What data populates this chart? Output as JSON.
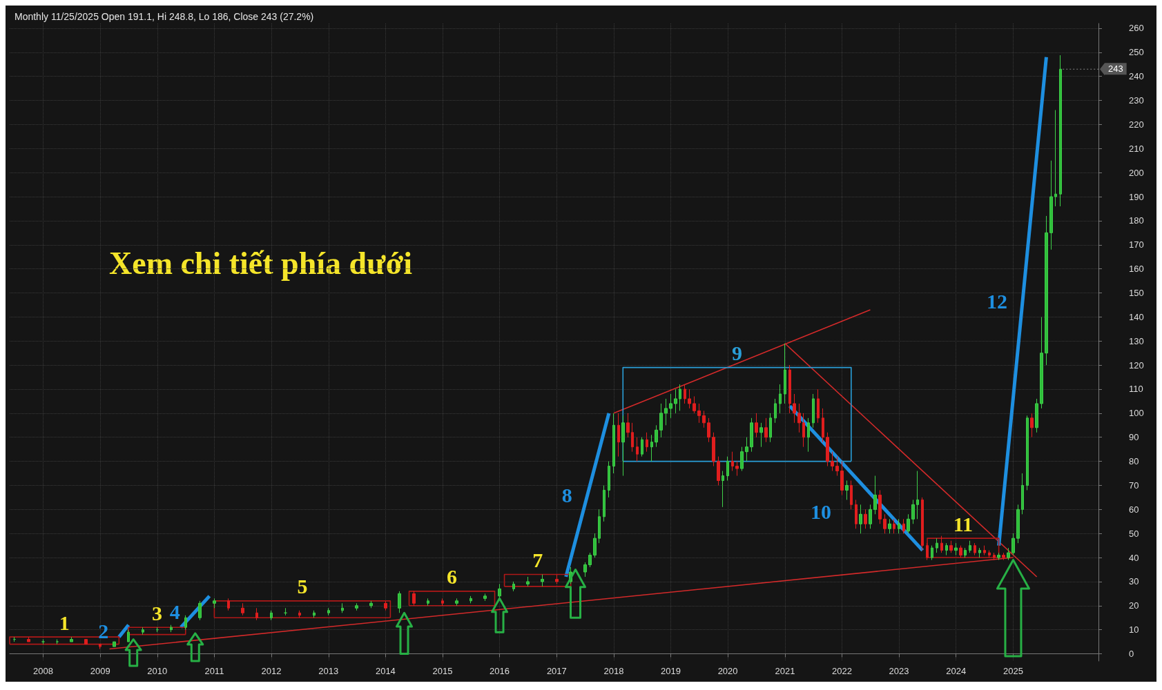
{
  "chart_data": {
    "type": "candlestick",
    "title": "Monthly 11/25/2025 Open 191.1, Hi 248.8, Lo 186, Close 243 (27.2%)",
    "x": [
      "2007-07",
      "2007-10",
      "2008-01",
      "2008-04",
      "2008-07",
      "2008-10",
      "2009-01",
      "2009-04",
      "2009-07",
      "2009-10",
      "2010-01",
      "2010-04",
      "2010-07",
      "2010-10",
      "2011-01",
      "2011-04",
      "2011-07",
      "2011-10",
      "2012-01",
      "2012-04",
      "2012-07",
      "2012-10",
      "2013-01",
      "2013-04",
      "2013-07",
      "2013-10",
      "2014-01",
      "2014-04",
      "2014-07",
      "2014-10",
      "2015-01",
      "2015-04",
      "2015-07",
      "2015-10",
      "2016-01",
      "2016-04",
      "2016-07",
      "2016-10",
      "2017-01",
      "2017-04",
      "2017-07",
      "2017-08",
      "2017-09",
      "2017-10",
      "2017-11",
      "2017-12",
      "2018-01",
      "2018-02",
      "2018-03",
      "2018-04",
      "2018-05",
      "2018-06",
      "2018-07",
      "2018-08",
      "2018-09",
      "2018-10",
      "2018-11",
      "2018-12",
      "2019-01",
      "2019-02",
      "2019-03",
      "2019-04",
      "2019-05",
      "2019-06",
      "2019-07",
      "2019-08",
      "2019-09",
      "2019-10",
      "2019-11",
      "2019-12",
      "2020-01",
      "2020-02",
      "2020-03",
      "2020-04",
      "2020-05",
      "2020-06",
      "2020-07",
      "2020-08",
      "2020-09",
      "2020-10",
      "2020-11",
      "2020-12",
      "2021-01",
      "2021-02",
      "2021-03",
      "2021-04",
      "2021-05",
      "2021-06",
      "2021-07",
      "2021-08",
      "2021-09",
      "2021-10",
      "2021-11",
      "2021-12",
      "2022-01",
      "2022-02",
      "2022-03",
      "2022-04",
      "2022-05",
      "2022-06",
      "2022-07",
      "2022-08",
      "2022-09",
      "2022-10",
      "2022-11",
      "2022-12",
      "2023-01",
      "2023-02",
      "2023-03",
      "2023-04",
      "2023-05",
      "2023-06",
      "2023-07",
      "2023-08",
      "2023-09",
      "2023-10",
      "2023-11",
      "2023-12",
      "2024-01",
      "2024-02",
      "2024-03",
      "2024-04",
      "2024-05",
      "2024-06",
      "2024-07",
      "2024-08",
      "2024-09",
      "2024-10",
      "2024-11",
      "2024-12",
      "2025-01",
      "2025-02",
      "2025-03",
      "2025-04",
      "2025-05",
      "2025-06",
      "2025-07",
      "2025-08",
      "2025-09",
      "2025-10",
      "2025-11"
    ],
    "ohlc": [
      [
        6,
        7,
        5,
        6
      ],
      [
        6,
        7,
        5,
        5
      ],
      [
        5,
        6,
        4,
        5
      ],
      [
        5,
        6,
        4,
        5
      ],
      [
        5,
        7,
        5,
        6
      ],
      [
        6,
        6,
        4,
        4
      ],
      [
        4,
        4,
        2,
        3
      ],
      [
        3,
        5,
        3,
        5
      ],
      [
        5,
        10,
        5,
        9
      ],
      [
        9,
        11,
        8,
        10
      ],
      [
        10,
        11,
        9,
        10
      ],
      [
        10,
        12,
        9,
        11
      ],
      [
        11,
        16,
        10,
        15
      ],
      [
        15,
        22,
        14,
        21
      ],
      [
        21,
        23,
        19,
        22
      ],
      [
        22,
        23,
        18,
        19
      ],
      [
        19,
        21,
        16,
        17
      ],
      [
        17,
        19,
        14,
        15
      ],
      [
        15,
        18,
        14,
        17
      ],
      [
        17,
        19,
        16,
        17
      ],
      [
        17,
        18,
        15,
        16
      ],
      [
        16,
        18,
        15,
        17
      ],
      [
        17,
        19,
        16,
        18
      ],
      [
        18,
        21,
        17,
        19
      ],
      [
        19,
        21,
        18,
        20
      ],
      [
        20,
        22,
        19,
        21
      ],
      [
        21,
        22,
        18,
        19
      ],
      [
        19,
        26,
        17,
        25
      ],
      [
        25,
        26,
        20,
        21
      ],
      [
        21,
        23,
        20,
        22
      ],
      [
        22,
        23,
        20,
        21
      ],
      [
        21,
        23,
        20,
        22
      ],
      [
        22,
        24,
        21,
        23
      ],
      [
        23,
        25,
        22,
        24
      ],
      [
        24,
        29,
        23,
        27
      ],
      [
        27,
        30,
        26,
        29
      ],
      [
        29,
        32,
        28,
        30
      ],
      [
        30,
        33,
        28,
        31
      ],
      [
        31,
        33,
        29,
        30
      ],
      [
        30,
        36,
        29,
        34
      ],
      [
        34,
        38,
        32,
        37
      ],
      [
        37,
        42,
        36,
        41
      ],
      [
        41,
        50,
        40,
        48
      ],
      [
        48,
        60,
        46,
        57
      ],
      [
        57,
        70,
        55,
        68
      ],
      [
        68,
        80,
        65,
        78
      ],
      [
        78,
        100,
        75,
        95
      ],
      [
        95,
        100,
        82,
        88
      ],
      [
        88,
        99,
        74,
        96
      ],
      [
        96,
        100,
        90,
        92
      ],
      [
        92,
        96,
        84,
        86
      ],
      [
        86,
        90,
        80,
        83
      ],
      [
        83,
        90,
        82,
        89
      ],
      [
        89,
        92,
        84,
        86
      ],
      [
        86,
        91,
        80,
        88
      ],
      [
        88,
        95,
        86,
        93
      ],
      [
        93,
        104,
        90,
        100
      ],
      [
        100,
        106,
        95,
        102
      ],
      [
        102,
        108,
        98,
        104
      ],
      [
        104,
        110,
        100,
        106
      ],
      [
        106,
        112,
        101,
        110
      ],
      [
        110,
        112,
        104,
        106
      ],
      [
        106,
        110,
        102,
        104
      ],
      [
        104,
        107,
        100,
        101
      ],
      [
        101,
        104,
        96,
        99
      ],
      [
        99,
        101,
        94,
        96
      ],
      [
        96,
        98,
        88,
        90
      ],
      [
        90,
        92,
        78,
        80
      ],
      [
        80,
        82,
        70,
        72
      ],
      [
        72,
        76,
        61,
        74
      ],
      [
        74,
        82,
        72,
        80
      ],
      [
        80,
        84,
        76,
        78
      ],
      [
        78,
        80,
        74,
        77
      ],
      [
        77,
        86,
        76,
        84
      ],
      [
        84,
        90,
        80,
        86
      ],
      [
        86,
        98,
        84,
        96
      ],
      [
        96,
        100,
        90,
        92
      ],
      [
        92,
        96,
        86,
        94
      ],
      [
        94,
        98,
        88,
        90
      ],
      [
        90,
        100,
        88,
        98
      ],
      [
        98,
        106,
        96,
        104
      ],
      [
        104,
        112,
        100,
        108
      ],
      [
        108,
        129,
        104,
        118
      ],
      [
        118,
        120,
        100,
        104
      ],
      [
        104,
        108,
        96,
        100
      ],
      [
        100,
        104,
        92,
        96
      ],
      [
        96,
        100,
        86,
        90
      ],
      [
        90,
        98,
        84,
        96
      ],
      [
        96,
        108,
        94,
        106
      ],
      [
        106,
        110,
        96,
        98
      ],
      [
        98,
        102,
        88,
        90
      ],
      [
        90,
        92,
        78,
        80
      ],
      [
        80,
        84,
        76,
        78
      ],
      [
        78,
        82,
        74,
        76
      ],
      [
        76,
        80,
        66,
        68
      ],
      [
        68,
        72,
        64,
        70
      ],
      [
        70,
        72,
        60,
        62
      ],
      [
        62,
        64,
        52,
        54
      ],
      [
        54,
        62,
        50,
        58
      ],
      [
        58,
        60,
        52,
        54
      ],
      [
        54,
        62,
        52,
        60
      ],
      [
        60,
        74,
        58,
        66
      ],
      [
        66,
        68,
        54,
        56
      ],
      [
        56,
        58,
        50,
        52
      ],
      [
        52,
        56,
        50,
        54
      ],
      [
        54,
        56,
        50,
        52
      ],
      [
        52,
        56,
        50,
        54
      ],
      [
        54,
        56,
        50,
        51
      ],
      [
        51,
        58,
        50,
        56
      ],
      [
        56,
        64,
        54,
        62
      ],
      [
        62,
        76,
        56,
        64
      ],
      [
        64,
        65,
        43,
        45
      ],
      [
        45,
        46,
        39,
        40
      ],
      [
        40,
        45,
        39,
        44
      ],
      [
        44,
        48,
        42,
        46
      ],
      [
        46,
        49,
        42,
        43
      ],
      [
        43,
        46,
        41,
        45
      ],
      [
        45,
        47,
        42,
        43
      ],
      [
        43,
        46,
        41,
        44
      ],
      [
        44,
        45,
        40,
        41
      ],
      [
        41,
        44,
        40,
        43
      ],
      [
        43,
        47,
        42,
        45
      ],
      [
        45,
        46,
        41,
        42
      ],
      [
        42,
        44,
        40,
        43
      ],
      [
        43,
        45,
        41,
        42
      ],
      [
        42,
        43,
        40,
        41
      ],
      [
        41,
        42,
        39,
        40
      ],
      [
        40,
        42,
        39,
        41
      ],
      [
        41,
        42,
        39,
        40
      ],
      [
        40,
        44,
        39,
        42
      ],
      [
        42,
        50,
        41,
        48
      ],
      [
        48,
        62,
        46,
        60
      ],
      [
        60,
        75,
        58,
        70
      ],
      [
        70,
        99,
        68,
        98
      ],
      [
        98,
        100,
        90,
        94
      ],
      [
        94,
        106,
        92,
        104
      ],
      [
        104,
        140,
        102,
        125
      ],
      [
        125,
        182,
        120,
        175
      ],
      [
        175,
        205,
        168,
        190
      ],
      [
        190,
        226,
        186,
        191.1
      ],
      [
        191.1,
        248.8,
        186,
        243
      ]
    ],
    "series": [
      {
        "type": "line",
        "color": "#d42a2a",
        "x": [
          "2009-03",
          "2025-01"
        ],
        "values": [
          2,
          40
        ]
      },
      {
        "type": "line",
        "color": "#d42a2a",
        "x": [
          "2018-01",
          "2022-07"
        ],
        "values": [
          100,
          143
        ]
      },
      {
        "type": "line",
        "color": "#d42a2a",
        "x": [
          "2021-01",
          "2025-06"
        ],
        "values": [
          129,
          32
        ]
      },
      {
        "type": "line",
        "name": "2",
        "color": "#1e8fe0",
        "x": [
          "2009-05",
          "2009-07"
        ],
        "values": [
          7,
          12
        ]
      },
      {
        "type": "line",
        "name": "4",
        "color": "#1e8fe0",
        "x": [
          "2010-06",
          "2010-12"
        ],
        "values": [
          11,
          24
        ]
      },
      {
        "type": "line",
        "name": "8",
        "color": "#1e8fe0",
        "x": [
          "2017-03",
          "2017-12"
        ],
        "values": [
          32,
          100
        ]
      },
      {
        "type": "line",
        "name": "10",
        "color": "#1e8fe0",
        "x": [
          "2021-02",
          "2023-06"
        ],
        "values": [
          103,
          43
        ]
      },
      {
        "type": "line",
        "name": "12",
        "color": "#1e8fe0",
        "x": [
          "2024-10",
          "2025-08"
        ],
        "values": [
          45,
          248
        ]
      },
      {
        "type": "line",
        "name": "1",
        "color": "#b01818",
        "x": [
          "2007-06",
          "2007-06",
          "2009-05",
          "2009-05"
        ],
        "values": [
          4,
          7,
          7,
          4
        ]
      },
      {
        "type": "line",
        "color": "#b01818",
        "x": [
          "2007-06",
          "2009-05"
        ],
        "values": [
          4,
          4
        ]
      },
      {
        "type": "line",
        "name": "3",
        "color": "#b01818",
        "x": [
          "2009-07",
          "2009-07",
          "2010-07",
          "2010-07"
        ],
        "values": [
          8,
          11,
          11,
          8
        ]
      },
      {
        "type": "line",
        "color": "#b01818",
        "x": [
          "2009-07",
          "2010-07"
        ],
        "values": [
          8,
          8
        ]
      },
      {
        "type": "line",
        "name": "5",
        "color": "#b01818",
        "x": [
          "2011-01",
          "2011-01",
          "2014-02",
          "2014-02"
        ],
        "values": [
          15,
          22,
          22,
          15
        ]
      },
      {
        "type": "line",
        "color": "#b01818",
        "x": [
          "2011-01",
          "2014-02"
        ],
        "values": [
          15,
          15
        ]
      },
      {
        "type": "line",
        "name": "6",
        "color": "#b01818",
        "x": [
          "2014-06",
          "2014-06",
          "2015-12",
          "2015-12"
        ],
        "values": [
          20,
          26,
          26,
          20
        ]
      },
      {
        "type": "line",
        "color": "#b01818",
        "x": [
          "2014-06",
          "2015-12"
        ],
        "values": [
          20,
          20
        ]
      },
      {
        "type": "line",
        "name": "7",
        "color": "#b01818",
        "x": [
          "2016-02",
          "2016-02",
          "2017-04",
          "2017-04"
        ],
        "values": [
          28,
          33,
          33,
          28
        ]
      },
      {
        "type": "line",
        "color": "#b01818",
        "x": [
          "2016-02",
          "2017-04"
        ],
        "values": [
          28,
          28
        ]
      },
      {
        "type": "line",
        "name": "9",
        "color": "#2a9fd8",
        "x": [
          "2018-03",
          "2018-03",
          "2022-03",
          "2022-03"
        ],
        "values": [
          80,
          119,
          119,
          80
        ]
      },
      {
        "type": "line",
        "color": "#2a9fd8",
        "x": [
          "2018-03",
          "2022-03"
        ],
        "values": [
          80,
          80
        ]
      },
      {
        "type": "line",
        "name": "11",
        "color": "#b01818",
        "x": [
          "2023-07",
          "2023-07",
          "2024-10",
          "2024-10"
        ],
        "values": [
          40,
          48,
          48,
          40
        ]
      },
      {
        "type": "line",
        "color": "#b01818",
        "x": [
          "2023-07",
          "2024-10"
        ],
        "values": [
          40,
          40
        ]
      }
    ],
    "annotations": [
      "Xem chi tiết phía dưới",
      {
        "text": "243",
        "x": "2025-11",
        "y": 243
      }
    ],
    "xlim": [
      "2007-06",
      "2026-07"
    ],
    "ylim": [
      -3,
      262
    ],
    "xticks": [
      "2008",
      "2009",
      "2010",
      "2011",
      "2012",
      "2013",
      "2014",
      "2015",
      "2016",
      "2017",
      "2018",
      "2019",
      "2020",
      "2021",
      "2022",
      "2023",
      "2024",
      "2025"
    ],
    "yticks": [
      0,
      10,
      20,
      30,
      40,
      50,
      60,
      70,
      80,
      90,
      100,
      110,
      120,
      130,
      140,
      150,
      160,
      170,
      180,
      190,
      200,
      210,
      220,
      230,
      240,
      250,
      260
    ],
    "grid": true
  }
}
